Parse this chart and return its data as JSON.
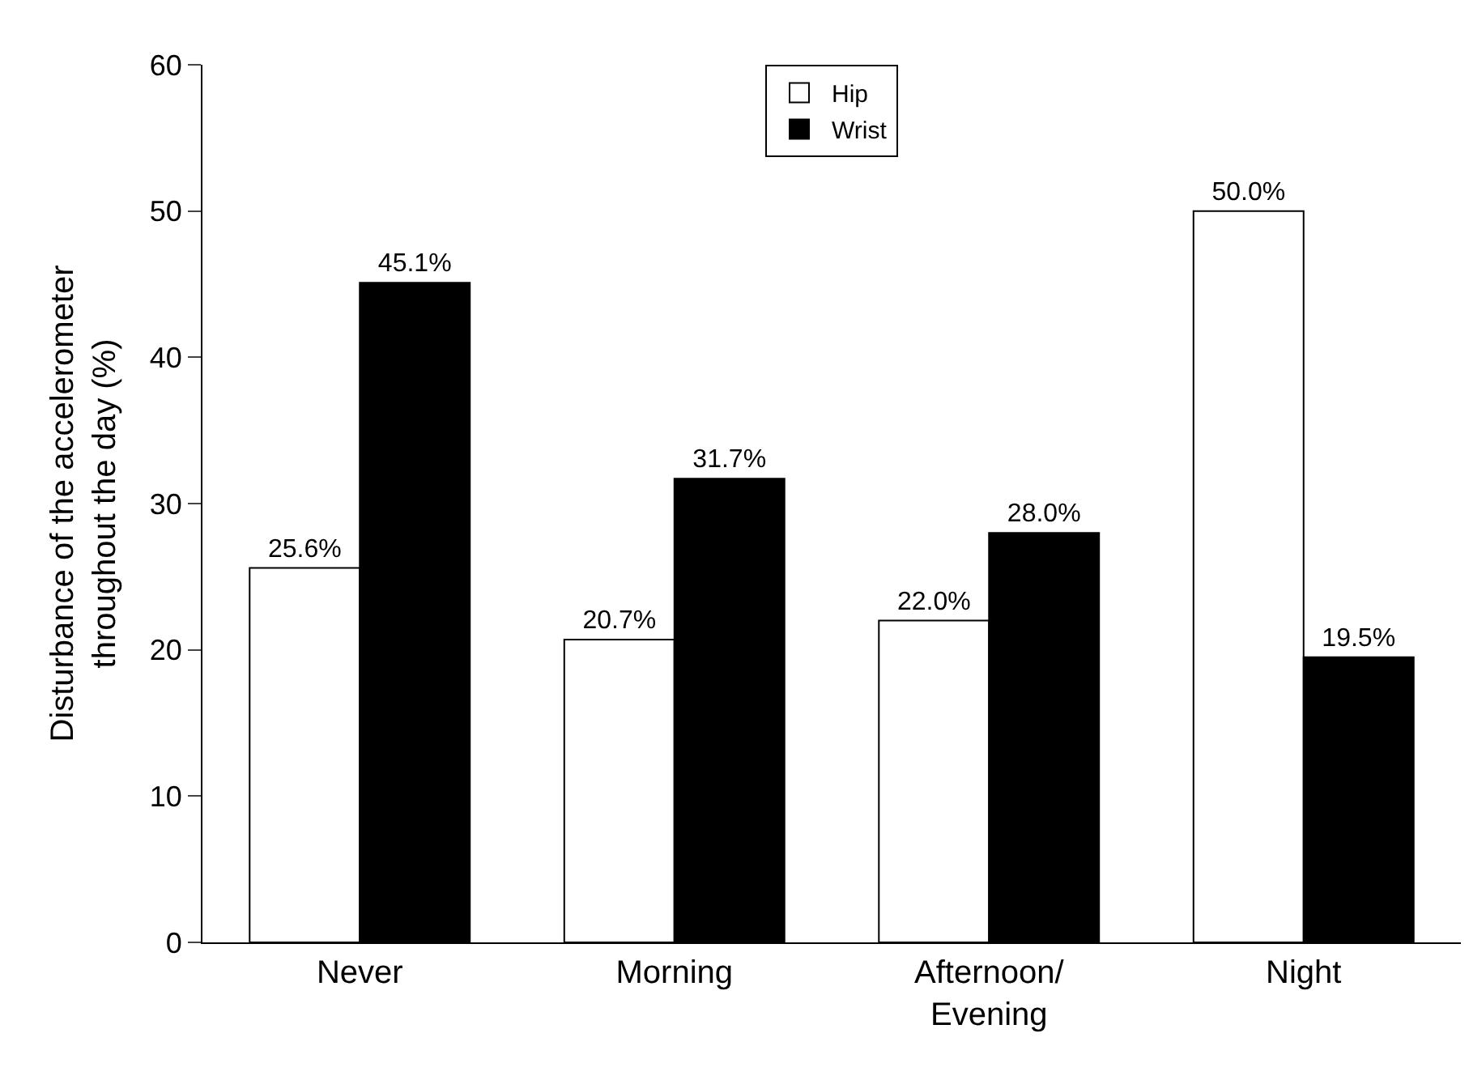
{
  "chart_data": {
    "type": "bar",
    "ylabel": "Disturbance of the accelerometer\nthroughout the day (%)",
    "categories": [
      "Never",
      "Morning",
      "Afternoon/\nEvening",
      "Night"
    ],
    "series": [
      {
        "name": "Hip",
        "color": "#ffffff",
        "values": [
          25.6,
          20.7,
          22.0,
          50.0
        ],
        "value_labels": [
          "25.6%",
          "20.7%",
          "22.0%",
          "50.0%"
        ]
      },
      {
        "name": "Wrist",
        "color": "#000000",
        "values": [
          45.1,
          31.7,
          28.0,
          19.5
        ],
        "value_labels": [
          "45.1%",
          "31.7%",
          "28.0%",
          "19.5%"
        ]
      }
    ],
    "ylim": [
      0,
      60
    ],
    "yticks": [
      0,
      10,
      20,
      30,
      40,
      50,
      60
    ],
    "grid": false,
    "legend": "top"
  }
}
